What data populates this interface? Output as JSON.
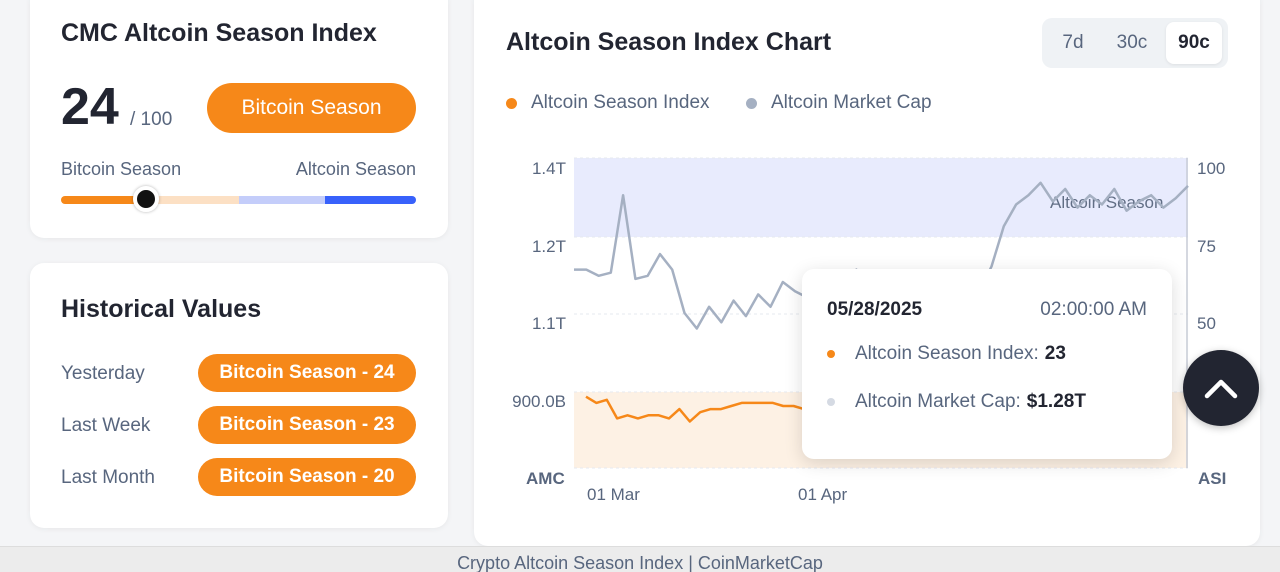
{
  "index_card": {
    "title": "CMC Altcoin Season Index",
    "score": "24",
    "score_max": "/ 100",
    "season_label": "Bitcoin Season",
    "scale_left": "Bitcoin Season",
    "scale_right": "Altcoin Season",
    "score_value": 24
  },
  "historical": {
    "title": "Historical Values",
    "rows": [
      {
        "label": "Yesterday",
        "value": "Bitcoin Season - 24"
      },
      {
        "label": "Last Week",
        "value": "Bitcoin Season - 23"
      },
      {
        "label": "Last Month",
        "value": "Bitcoin Season - 20"
      }
    ]
  },
  "chart_panel": {
    "title": "Altcoin Season Index Chart",
    "ranges": [
      {
        "label": "7d"
      },
      {
        "label": "30c"
      },
      {
        "label": "90c"
      }
    ],
    "selected_range": "90c",
    "legend": [
      {
        "label": "Altcoin Season Index",
        "color": "#f68819"
      },
      {
        "label": "Altcoin Market Cap",
        "color": "#a5b0c2"
      }
    ],
    "tooltip": {
      "date": "05/28/2025",
      "time": "02:00:00 AM",
      "index_label": "Altcoin Season Index:",
      "index_value": "23",
      "cap_label": "Altcoin Market Cap:",
      "cap_value": "$1.28T"
    }
  },
  "chart_data": {
    "type": "line",
    "left_axis": {
      "label": "AMC",
      "ticks": [
        "1.4T",
        "1.2T",
        "1.1T",
        "900.0B"
      ]
    },
    "right_axis": {
      "label": "ASI",
      "ticks": [
        "100",
        "75",
        "50",
        "25"
      ],
      "range": [
        0,
        100
      ]
    },
    "x_ticks": [
      "01 Mar",
      "01 Apr"
    ],
    "band_labels": {
      "altcoin_season": "Altcoin Season"
    },
    "band_colors": {
      "altcoin": "#e8ebfd",
      "bitcoin": "#fdf1e4"
    },
    "series": [
      {
        "name": "Altcoin Season Index",
        "color": "#f68819",
        "values": [
          23,
          21,
          22,
          16,
          17,
          16,
          17,
          17,
          16,
          19,
          15,
          18,
          19,
          19,
          20,
          21,
          21,
          21,
          21,
          20,
          20,
          19
        ]
      },
      {
        "name": "Altcoin Market Cap",
        "color": "#a5b0c2",
        "values": [
          64,
          64,
          62,
          63,
          88,
          61,
          62,
          69,
          64,
          50,
          45,
          52,
          47,
          54,
          49,
          56,
          52,
          60,
          57,
          55,
          63,
          58,
          61,
          64,
          59,
          55,
          50,
          49,
          48,
          51,
          52,
          50,
          53,
          57,
          65,
          78,
          85,
          88,
          92,
          86,
          90,
          84,
          88,
          85,
          90,
          83,
          86,
          88,
          84,
          87,
          91
        ]
      }
    ]
  },
  "footer": {
    "text": "Crypto Altcoin Season Index | CoinMarketCap"
  }
}
